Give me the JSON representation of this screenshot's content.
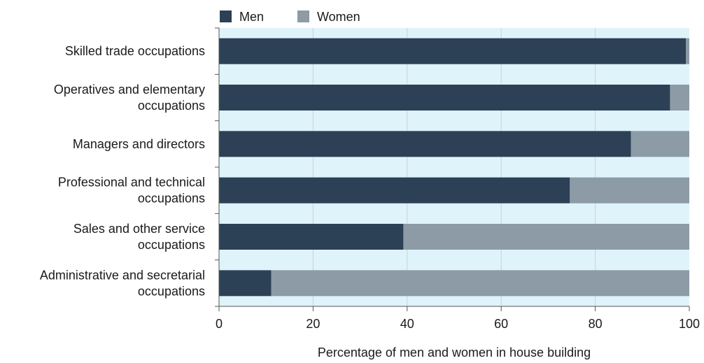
{
  "chart_data": {
    "type": "bar",
    "orientation": "horizontal",
    "stacked": true,
    "categories": [
      "Skilled trade occupations",
      "Operatives and elementary occupations",
      "Managers and directors",
      "Professional and technical occupations",
      "Sales and other service occupations",
      "Administrative and secretarial occupations"
    ],
    "category_lines": [
      [
        "Skilled trade occupations"
      ],
      [
        "Operatives and elementary",
        "occupations"
      ],
      [
        "Managers and directors"
      ],
      [
        "Professional and technical",
        "occupations"
      ],
      [
        "Sales and other service",
        "occupations"
      ],
      [
        "Administrative and secretarial",
        "occupations"
      ]
    ],
    "series": [
      {
        "name": "Men",
        "color": "#2c4155",
        "values": [
          99.3,
          95.9,
          87.6,
          74.6,
          39.2,
          11.1
        ]
      },
      {
        "name": "Women",
        "color": "#8c9ba6",
        "values": [
          0.7,
          4.1,
          12.4,
          25.4,
          60.8,
          88.9
        ]
      }
    ],
    "xlabel": "Percentage of men and women in house building",
    "ylabel": "",
    "xlim": [
      0,
      100
    ],
    "xticks": [
      0,
      20,
      40,
      60,
      80,
      100
    ],
    "grid": true,
    "legend": "top-left",
    "plot_background": "#dff3fb"
  }
}
